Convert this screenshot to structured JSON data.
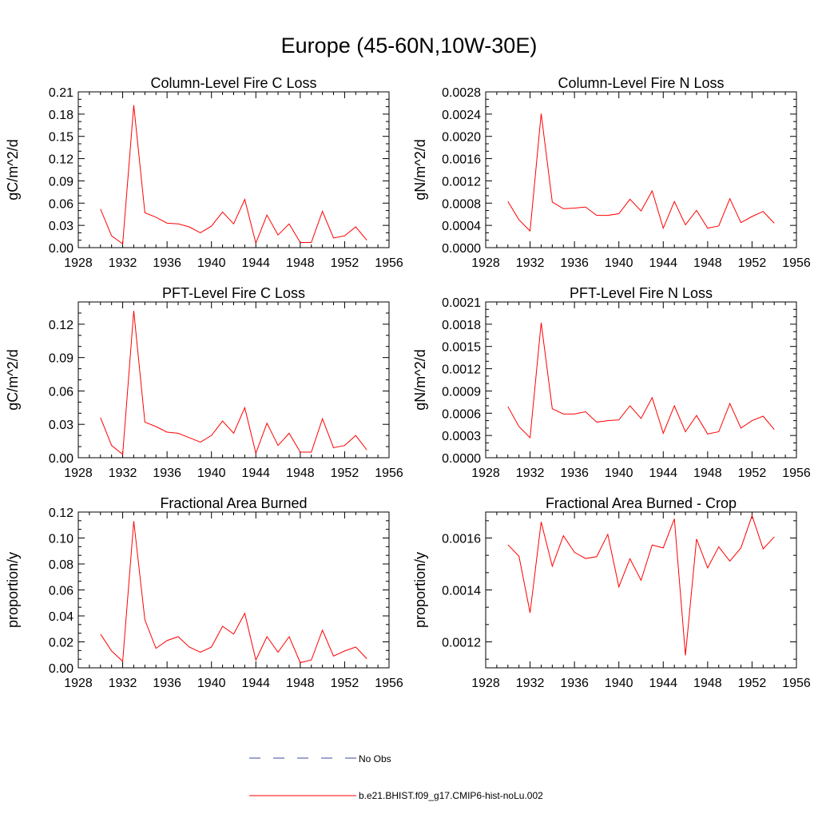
{
  "figure": {
    "title": "Europe (45-60N,10W-30E)"
  },
  "legend": [
    {
      "label": "No Obs",
      "color": "#3b4a9a",
      "style": "dashed"
    },
    {
      "label": "b.e21.BHIST.f09_g17.CMIP6-hist-noLu.002",
      "color": "#ff0000",
      "style": "solid"
    }
  ],
  "chart_data": [
    {
      "type": "line",
      "title": "Column-Level Fire C Loss",
      "ylabel": "gC/m^2/d",
      "xlim": [
        1928,
        1956
      ],
      "xticks": [
        1928,
        1932,
        1936,
        1940,
        1944,
        1948,
        1952,
        1956
      ],
      "ylim": [
        0,
        0.21
      ],
      "yticks": [
        "0.00",
        "0.03",
        "0.06",
        "0.09",
        "0.12",
        "0.15",
        "0.18",
        "0.21"
      ],
      "x": [
        1930,
        1931,
        1932,
        1933,
        1934,
        1935,
        1936,
        1937,
        1938,
        1939,
        1940,
        1941,
        1942,
        1943,
        1944,
        1945,
        1946,
        1947,
        1948,
        1949,
        1950,
        1951,
        1952,
        1953,
        1954
      ],
      "series": [
        {
          "color": "#ff0000",
          "values": [
            0.052,
            0.016,
            0.005,
            0.192,
            0.047,
            0.041,
            0.033,
            0.032,
            0.028,
            0.02,
            0.029,
            0.048,
            0.032,
            0.065,
            0.006,
            0.044,
            0.017,
            0.032,
            0.007,
            0.007,
            0.049,
            0.013,
            0.016,
            0.028,
            0.01
          ]
        }
      ]
    },
    {
      "type": "line",
      "title": "Column-Level Fire N Loss",
      "ylabel": "gN/m^2/d",
      "xlim": [
        1928,
        1956
      ],
      "xticks": [
        1928,
        1932,
        1936,
        1940,
        1944,
        1948,
        1952,
        1956
      ],
      "ylim": [
        0,
        0.0028
      ],
      "yticks": [
        "0.0000",
        "0.0004",
        "0.0008",
        "0.0012",
        "0.0016",
        "0.0020",
        "0.0024",
        "0.0028"
      ],
      "x": [
        1930,
        1931,
        1932,
        1933,
        1934,
        1935,
        1936,
        1937,
        1938,
        1939,
        1940,
        1941,
        1942,
        1943,
        1944,
        1945,
        1946,
        1947,
        1948,
        1949,
        1950,
        1951,
        1952,
        1953,
        1954
      ],
      "series": [
        {
          "color": "#ff0000",
          "values": [
            0.00083,
            0.0005,
            0.0003,
            0.00241,
            0.00082,
            0.0007,
            0.00071,
            0.00073,
            0.00058,
            0.00058,
            0.00061,
            0.00087,
            0.00066,
            0.00102,
            0.00035,
            0.00083,
            0.00041,
            0.00067,
            0.00035,
            0.00039,
            0.00088,
            0.00045,
            0.00056,
            0.00065,
            0.00044
          ]
        }
      ]
    },
    {
      "type": "line",
      "title": "PFT-Level Fire C Loss",
      "ylabel": "gC/m^2/d",
      "xlim": [
        1928,
        1956
      ],
      "xticks": [
        1928,
        1932,
        1936,
        1940,
        1944,
        1948,
        1952,
        1956
      ],
      "ylim": [
        0,
        0.14
      ],
      "yticks": [
        "0.00",
        "0.03",
        "0.06",
        "0.09",
        "0.12"
      ],
      "x": [
        1930,
        1931,
        1932,
        1933,
        1934,
        1935,
        1936,
        1937,
        1938,
        1939,
        1940,
        1941,
        1942,
        1943,
        1944,
        1945,
        1946,
        1947,
        1948,
        1949,
        1950,
        1951,
        1952,
        1953,
        1954
      ],
      "series": [
        {
          "color": "#ff0000",
          "values": [
            0.036,
            0.011,
            0.003,
            0.132,
            0.032,
            0.028,
            0.023,
            0.022,
            0.018,
            0.014,
            0.02,
            0.033,
            0.022,
            0.045,
            0.004,
            0.031,
            0.011,
            0.022,
            0.005,
            0.005,
            0.035,
            0.009,
            0.011,
            0.02,
            0.007
          ]
        }
      ]
    },
    {
      "type": "line",
      "title": "PFT-Level Fire N Loss",
      "ylabel": "gN/m^2/d",
      "xlim": [
        1928,
        1956
      ],
      "xticks": [
        1928,
        1932,
        1936,
        1940,
        1944,
        1948,
        1952,
        1956
      ],
      "ylim": [
        0,
        0.0021
      ],
      "yticks": [
        "0.0000",
        "0.0003",
        "0.0006",
        "0.0009",
        "0.0012",
        "0.0015",
        "0.0018",
        "0.0021"
      ],
      "x": [
        1930,
        1931,
        1932,
        1933,
        1934,
        1935,
        1936,
        1937,
        1938,
        1939,
        1940,
        1941,
        1942,
        1943,
        1944,
        1945,
        1946,
        1947,
        1948,
        1949,
        1950,
        1951,
        1952,
        1953,
        1954
      ],
      "series": [
        {
          "color": "#ff0000",
          "values": [
            0.00069,
            0.00042,
            0.00027,
            0.00182,
            0.00066,
            0.00059,
            0.00059,
            0.00062,
            0.00048,
            0.0005,
            0.00051,
            0.0007,
            0.00053,
            0.00081,
            0.00033,
            0.0007,
            0.00035,
            0.00057,
            0.00032,
            0.00035,
            0.00073,
            0.0004,
            0.0005,
            0.00056,
            0.00038
          ]
        }
      ]
    },
    {
      "type": "line",
      "title": "Fractional Area Burned",
      "ylabel": "proportion/y",
      "xlim": [
        1928,
        1956
      ],
      "xticks": [
        1928,
        1932,
        1936,
        1940,
        1944,
        1948,
        1952,
        1956
      ],
      "ylim": [
        0,
        0.12
      ],
      "yticks": [
        "0.00",
        "0.02",
        "0.04",
        "0.06",
        "0.08",
        "0.10",
        "0.12"
      ],
      "x": [
        1930,
        1931,
        1932,
        1933,
        1934,
        1935,
        1936,
        1937,
        1938,
        1939,
        1940,
        1941,
        1942,
        1943,
        1944,
        1945,
        1946,
        1947,
        1948,
        1949,
        1950,
        1951,
        1952,
        1953,
        1954
      ],
      "series": [
        {
          "color": "#ff0000",
          "values": [
            0.026,
            0.013,
            0.005,
            0.113,
            0.037,
            0.015,
            0.021,
            0.024,
            0.016,
            0.012,
            0.016,
            0.032,
            0.026,
            0.042,
            0.006,
            0.024,
            0.012,
            0.024,
            0.004,
            0.006,
            0.029,
            0.009,
            0.013,
            0.016,
            0.007
          ]
        }
      ]
    },
    {
      "type": "line",
      "title": "Fractional Area Burned - Crop",
      "ylabel": "proportion/y",
      "xlim": [
        1928,
        1956
      ],
      "xticks": [
        1928,
        1932,
        1936,
        1940,
        1944,
        1948,
        1952,
        1956
      ],
      "ylim": [
        0.0011,
        0.0017
      ],
      "yticks": [
        "0.0012",
        "0.0014",
        "0.0016"
      ],
      "x": [
        1930,
        1931,
        1932,
        1933,
        1934,
        1935,
        1936,
        1937,
        1938,
        1939,
        1940,
        1941,
        1942,
        1943,
        1944,
        1945,
        1946,
        1947,
        1948,
        1949,
        1950,
        1951,
        1952,
        1953,
        1954
      ],
      "series": [
        {
          "color": "#ff0000",
          "values": [
            0.001574,
            0.00153,
            0.001312,
            0.001662,
            0.001491,
            0.001609,
            0.001545,
            0.001521,
            0.001528,
            0.001614,
            0.001412,
            0.00152,
            0.001437,
            0.001573,
            0.001562,
            0.001674,
            0.001148,
            0.001596,
            0.001485,
            0.001566,
            0.001511,
            0.001562,
            0.001686,
            0.001558,
            0.001604
          ]
        }
      ]
    }
  ]
}
